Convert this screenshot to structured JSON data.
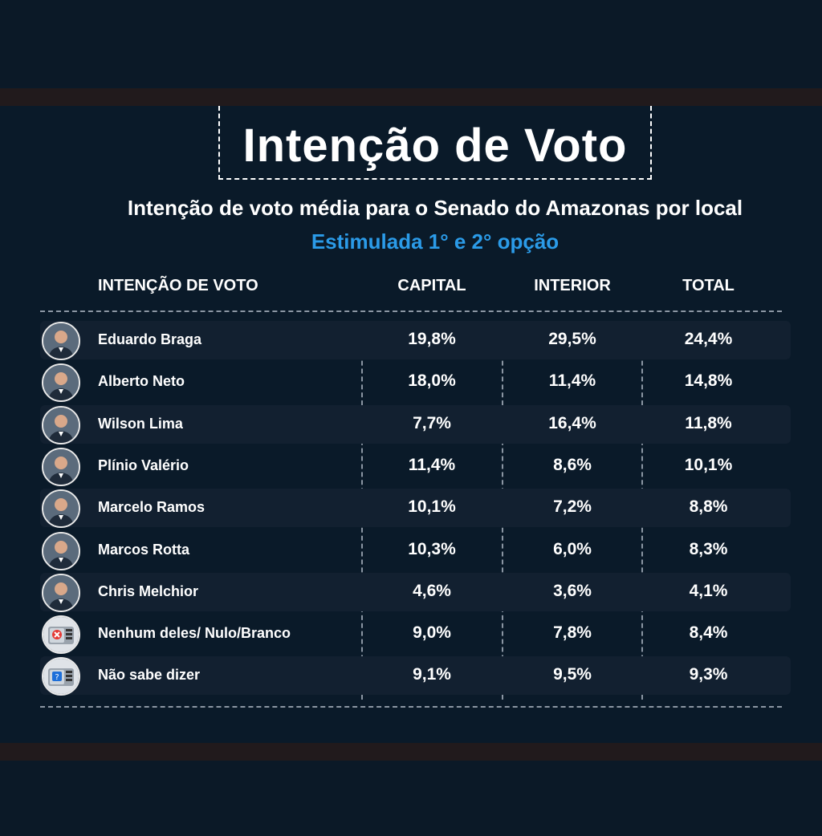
{
  "chart_data": {
    "type": "table",
    "title": "Intenção de Voto",
    "subtitle": "Intenção de voto média para o Senado do Amazonas por local",
    "subtitle2": "Estimulada  1° e 2° opção",
    "columns": [
      "INTENÇÃO DE VOTO",
      "CAPITAL",
      "INTERIOR",
      "TOTAL"
    ],
    "rows": [
      {
        "name": "Eduardo Braga",
        "capital": "19,8%",
        "interior": "29,5%",
        "total": "24,4%",
        "icon": "person-photo-icon"
      },
      {
        "name": "Alberto Neto",
        "capital": "18,0%",
        "interior": "11,4%",
        "total": "14,8%",
        "icon": "person-photo-icon"
      },
      {
        "name": "Wilson Lima",
        "capital": "7,7%",
        "interior": "16,4%",
        "total": "11,8%",
        "icon": "person-photo-icon"
      },
      {
        "name": "Plínio Valério",
        "capital": "11,4%",
        "interior": "8,6%",
        "total": "10,1%",
        "icon": "person-photo-icon"
      },
      {
        "name": "Marcelo Ramos",
        "capital": "10,1%",
        "interior": "7,2%",
        "total": "8,8%",
        "icon": "person-photo-icon"
      },
      {
        "name": "Marcos Rotta",
        "capital": "10,3%",
        "interior": "6,0%",
        "total": "8,3%",
        "icon": "person-photo-icon"
      },
      {
        "name": "Chris Melchior",
        "capital": "4,6%",
        "interior": "3,6%",
        "total": "4,1%",
        "icon": "person-photo-icon"
      },
      {
        "name": "Nenhum deles/ Nulo/Branco",
        "capital": "9,0%",
        "interior": "7,8%",
        "total": "8,4%",
        "icon": "ballot-box-x-icon"
      },
      {
        "name": "Não sabe dizer",
        "capital": "9,1%",
        "interior": "9,5%",
        "total": "9,3%",
        "icon": "ballot-box-question-icon"
      }
    ]
  },
  "colors": {
    "background": "#0a1a29",
    "band": "#211a1c",
    "row_shade": "#122030",
    "accent": "#2b9be8",
    "text": "#ffffff"
  }
}
